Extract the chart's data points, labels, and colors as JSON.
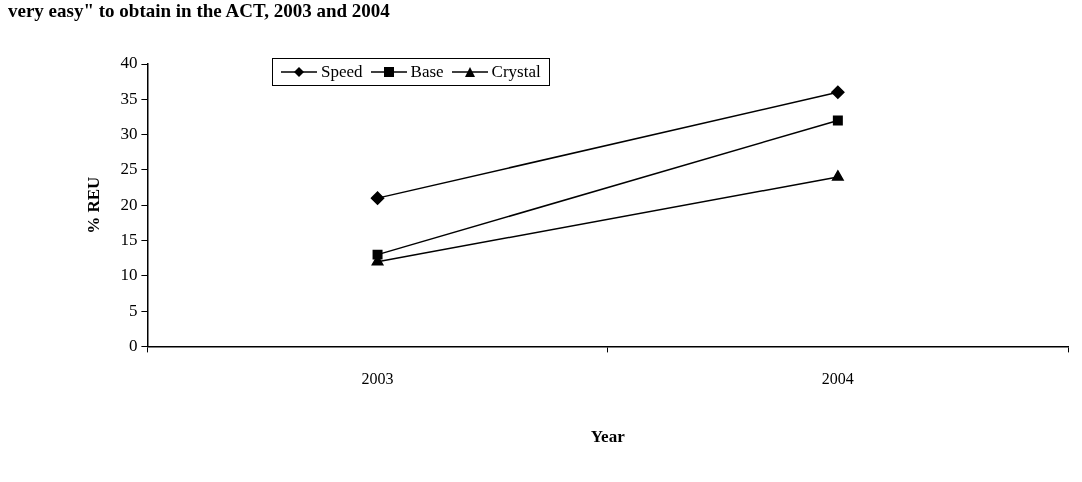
{
  "chart_data": {
    "type": "line",
    "title": "very easy\" to obtain in the ACT, 2003 and 2004",
    "xlabel": "Year",
    "ylabel": "% REU",
    "categories": [
      "2003",
      "2004"
    ],
    "series": [
      {
        "name": "Speed",
        "color": "#000000",
        "marker": "diamond",
        "values": [
          21,
          36
        ]
      },
      {
        "name": "Base",
        "color": "#000000",
        "marker": "square",
        "values": [
          13,
          32
        ]
      },
      {
        "name": "Crystal",
        "color": "#000000",
        "marker": "triangle",
        "values": [
          12,
          24
        ]
      }
    ],
    "ylim": [
      0,
      40
    ],
    "yticks": [
      0,
      5,
      10,
      15,
      20,
      25,
      30,
      35,
      40
    ],
    "legend": "top left",
    "line_style": "solid"
  }
}
